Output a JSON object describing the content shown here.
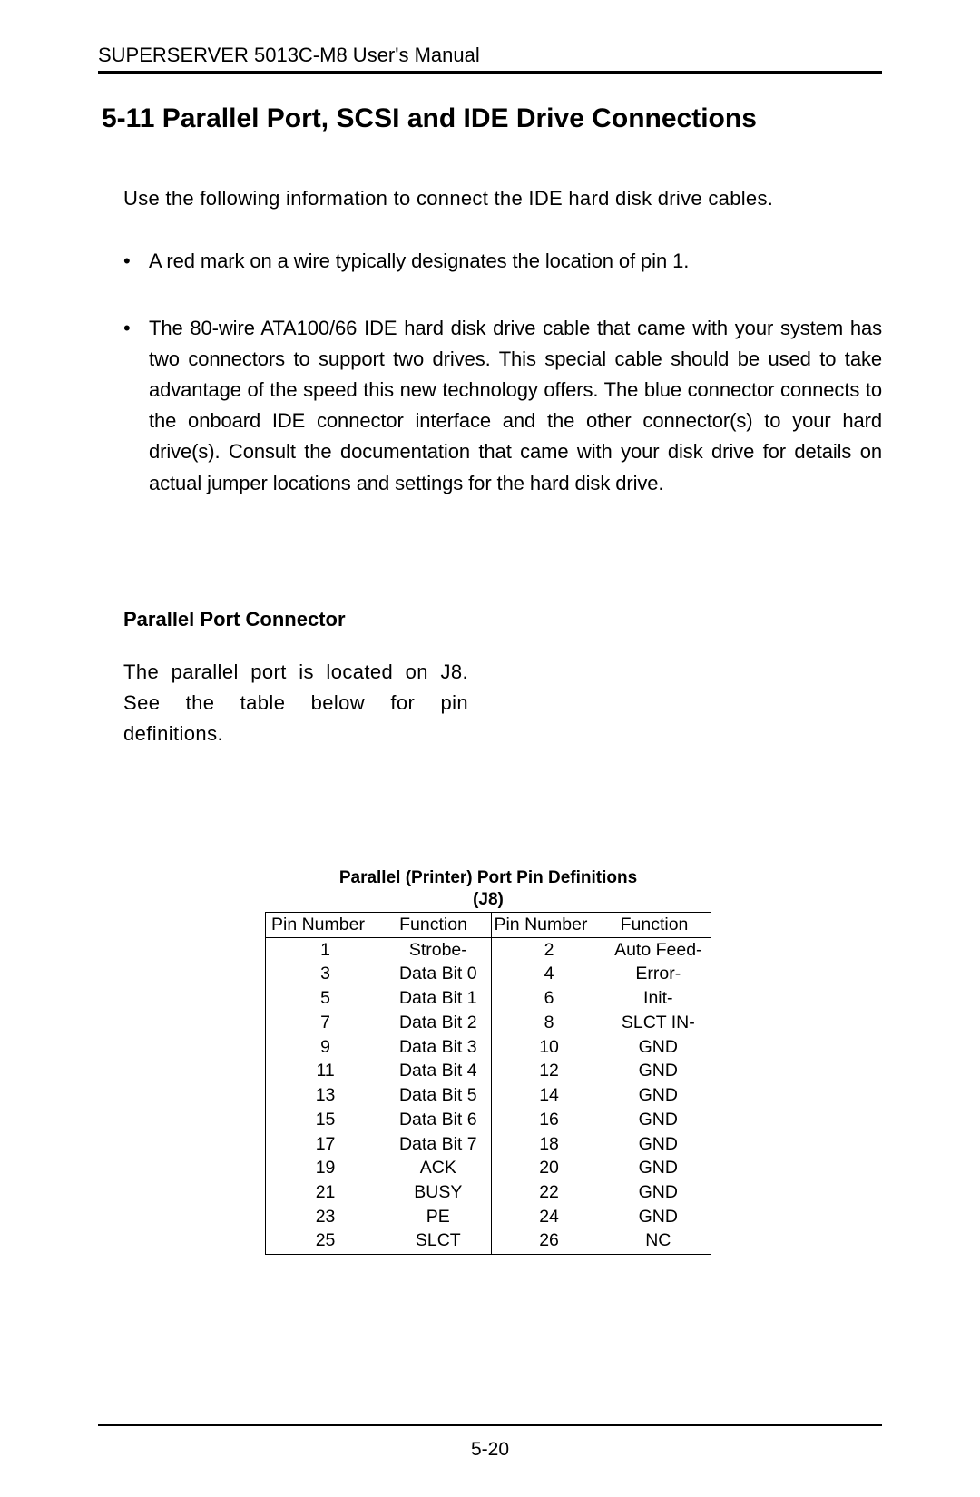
{
  "header": {
    "text": "SUPERSERVER 5013C-M8 User's Manual"
  },
  "section": {
    "heading": "5-11  Parallel Port, SCSI and IDE Drive Connections",
    "intro": "Use the following information to connect the IDE hard disk drive cables.",
    "bullets": [
      "A red mark on a wire typically designates the location of pin 1.",
      "The 80-wire ATA100/66 IDE hard disk drive cable that came with your system has two connectors to support two drives.  This special cable should be used to take advantage of the speed this new technology offers.  The blue connector connects to the onboard IDE connector interface and the other connector(s) to your hard drive(s).  Consult the documentation that came with your disk drive for details on actual jumper locations and settings for the hard disk drive."
    ]
  },
  "subsection": {
    "heading": "Parallel Port Connector",
    "paragraph": "The parallel port is located on J8.  See the table below for pin definitions."
  },
  "table": {
    "title_line1": "Parallel (Printer) Port Pin Definitions",
    "title_line2": "(J8)",
    "headers": {
      "pin_left": "Pin Number",
      "func_left": "Function",
      "pin_right": "Pin Number",
      "func_right": "Function"
    },
    "rows": [
      {
        "pin_left": "1",
        "func_left": "Strobe-",
        "pin_right": "2",
        "func_right": "Auto Feed-"
      },
      {
        "pin_left": "3",
        "func_left": "Data Bit 0",
        "pin_right": "4",
        "func_right": "Error-"
      },
      {
        "pin_left": "5",
        "func_left": "Data Bit 1",
        "pin_right": "6",
        "func_right": "Init-"
      },
      {
        "pin_left": "7",
        "func_left": "Data Bit 2",
        "pin_right": "8",
        "func_right": "SLCT IN-"
      },
      {
        "pin_left": "9",
        "func_left": "Data Bit 3",
        "pin_right": "10",
        "func_right": "GND"
      },
      {
        "pin_left": "11",
        "func_left": "Data Bit 4",
        "pin_right": "12",
        "func_right": "GND"
      },
      {
        "pin_left": "13",
        "func_left": "Data Bit 5",
        "pin_right": "14",
        "func_right": "GND"
      },
      {
        "pin_left": "15",
        "func_left": "Data Bit 6",
        "pin_right": "16",
        "func_right": "GND"
      },
      {
        "pin_left": "17",
        "func_left": "Data Bit 7",
        "pin_right": "18",
        "func_right": "GND"
      },
      {
        "pin_left": "19",
        "func_left": "ACK",
        "pin_right": "20",
        "func_right": "GND"
      },
      {
        "pin_left": "21",
        "func_left": "BUSY",
        "pin_right": "22",
        "func_right": "GND"
      },
      {
        "pin_left": "23",
        "func_left": "PE",
        "pin_right": "24",
        "func_right": "GND"
      },
      {
        "pin_left": "25",
        "func_left": "SLCT",
        "pin_right": "26",
        "func_right": "NC"
      }
    ]
  },
  "footer": {
    "page_number": "5-20"
  }
}
